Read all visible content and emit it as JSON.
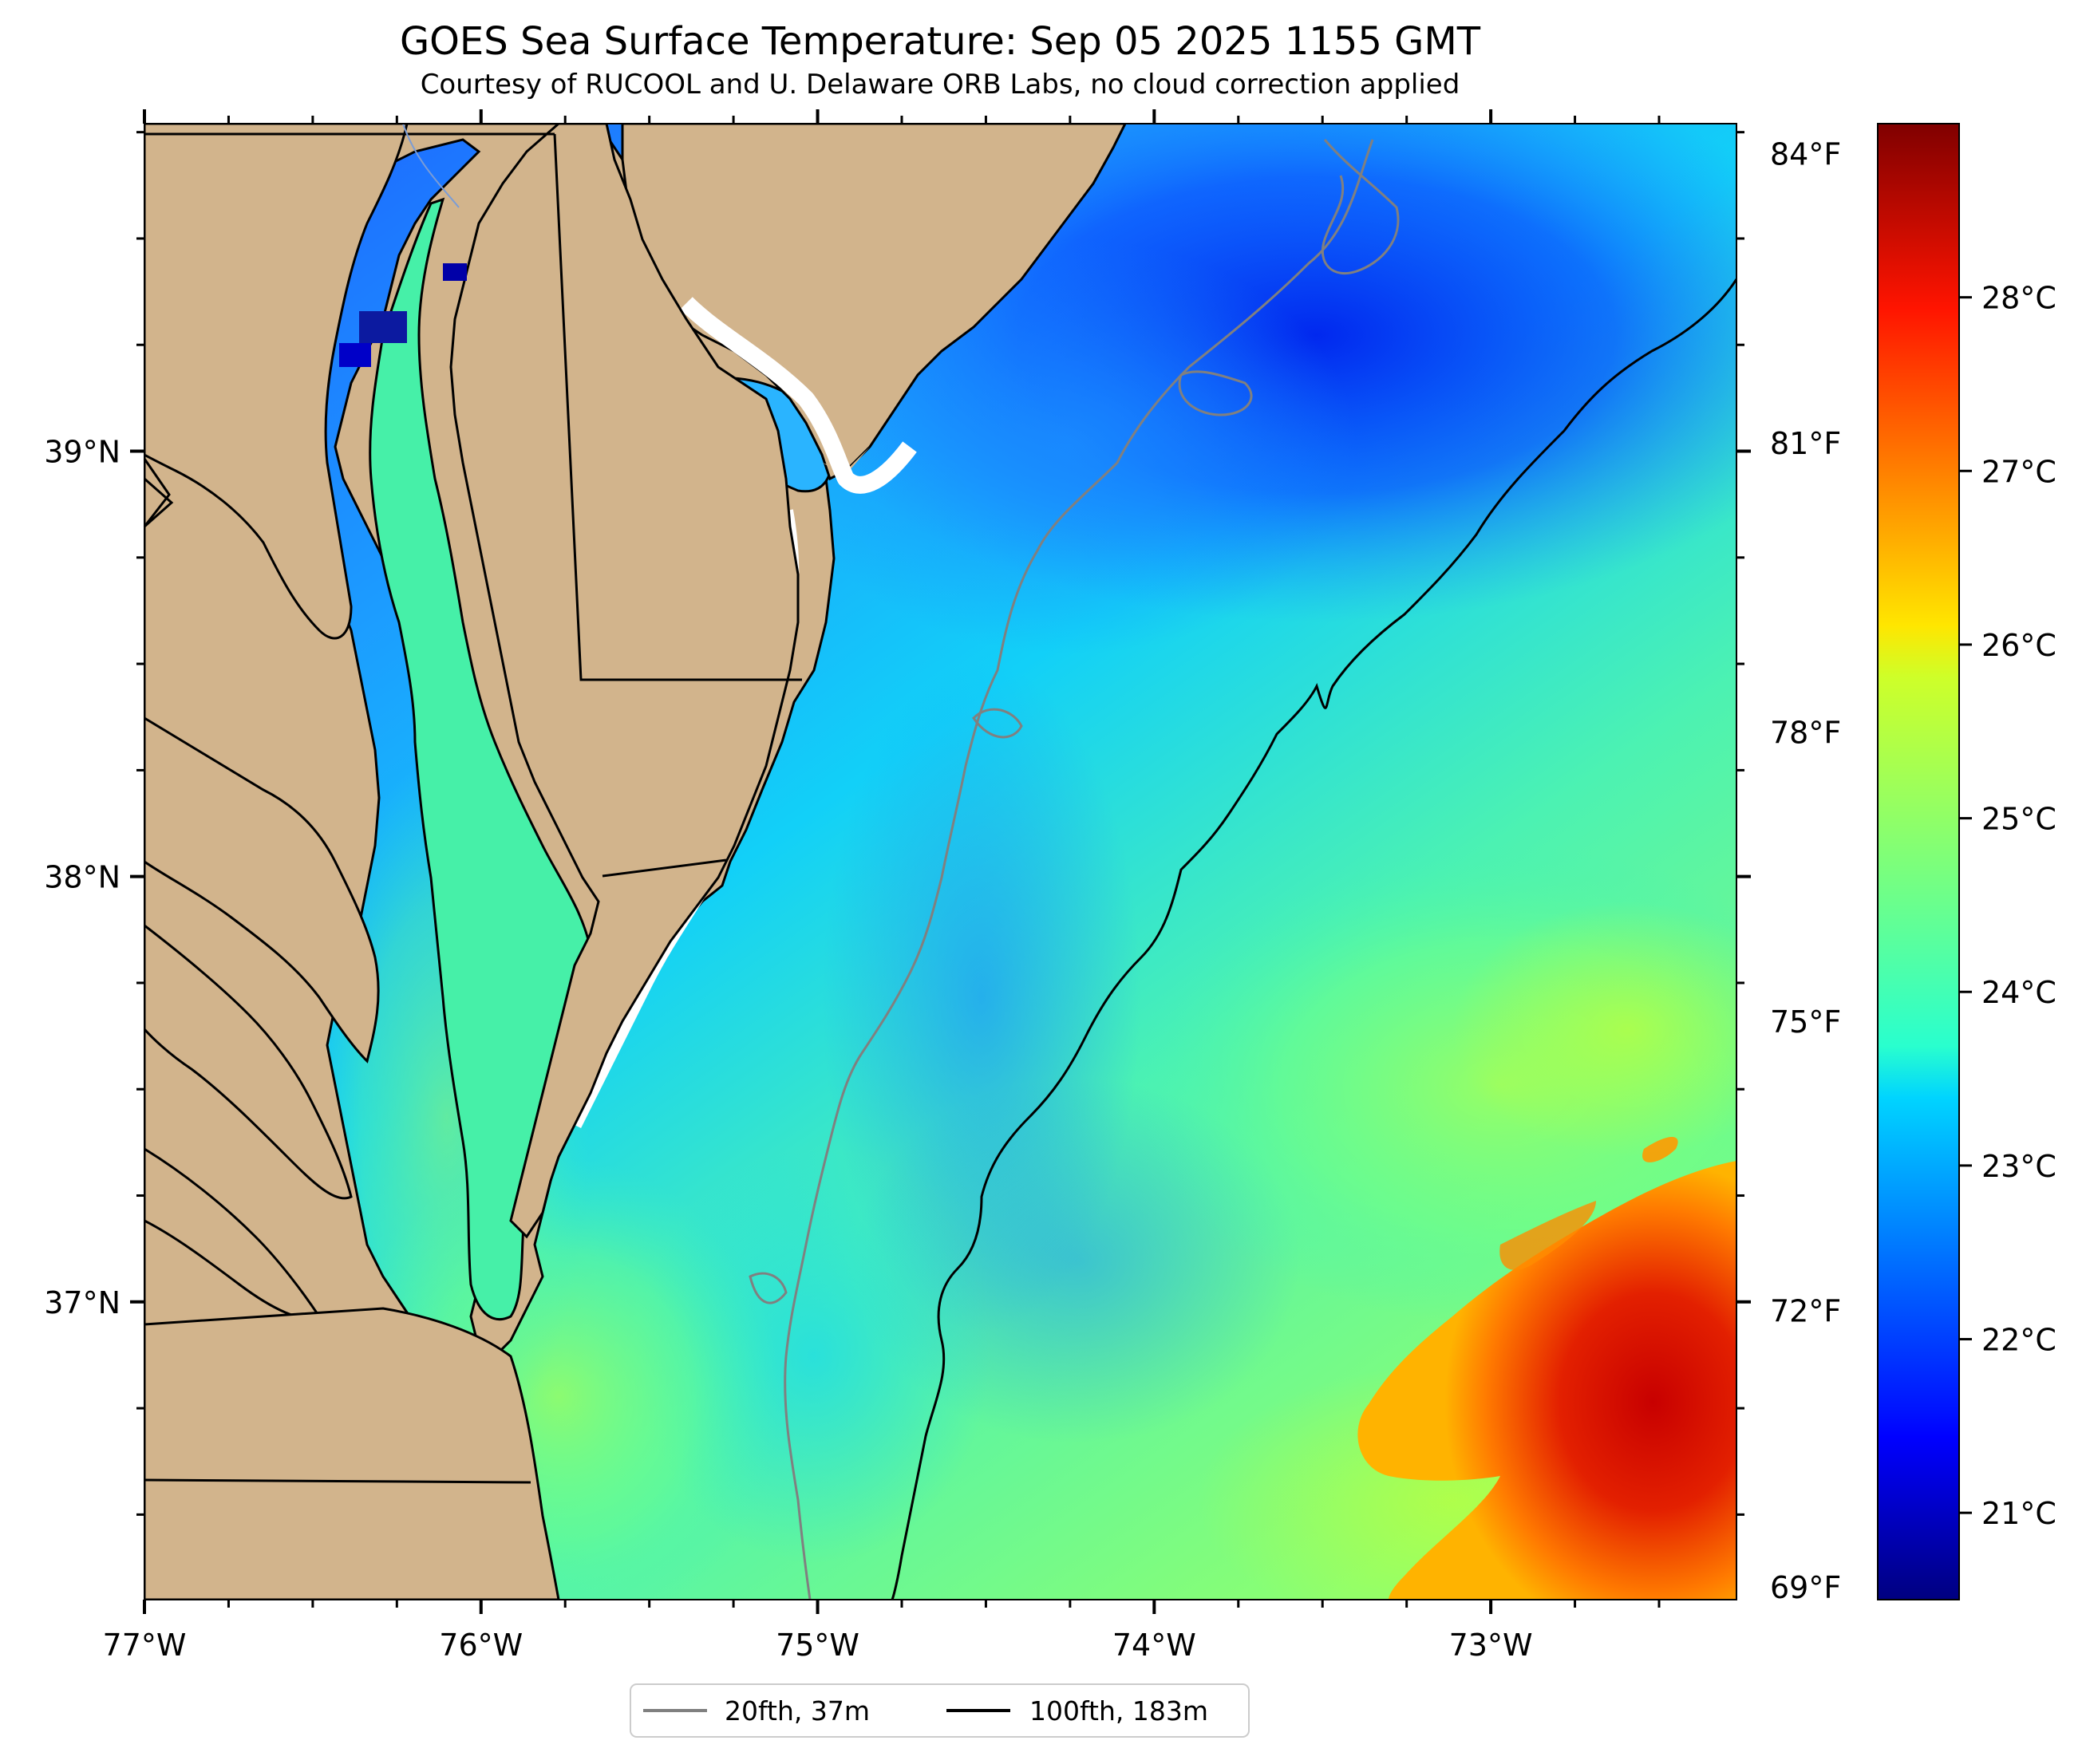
{
  "title": "GOES Sea Surface Temperature: Sep 05 2025 1155 GMT",
  "subtitle": "Courtesy of RUCOOL and U. Delaware ORB Labs, no cloud correction applied",
  "map": {
    "lon_range": [
      -77.0,
      -72.27
    ],
    "lat_range": [
      36.3,
      39.77
    ],
    "land_color": "#D2B48C",
    "lon_ticks": [
      {
        "value": -77,
        "label": "77°W"
      },
      {
        "value": -76,
        "label": "76°W"
      },
      {
        "value": -75,
        "label": "75°W"
      },
      {
        "value": -74,
        "label": "74°W"
      },
      {
        "value": -73,
        "label": "73°W"
      }
    ],
    "lat_ticks": [
      {
        "value": 39,
        "label": "39°N"
      },
      {
        "value": 38,
        "label": "38°N"
      },
      {
        "value": 37,
        "label": "37°N"
      }
    ],
    "right_axis_ticks": [
      {
        "value": 39.7,
        "label": "84°F"
      },
      {
        "value": 39.02,
        "label": "81°F"
      },
      {
        "value": 38.34,
        "label": "78°F"
      },
      {
        "value": 37.66,
        "label": "75°F"
      },
      {
        "value": 36.98,
        "label": "72°F"
      },
      {
        "value": 36.33,
        "label": "69°F"
      }
    ],
    "legend": {
      "placement": "bottom-center",
      "entries": [
        {
          "label": "20fth, 37m",
          "color": "#808080"
        },
        {
          "label": "100fth, 183m",
          "color": "#000000"
        }
      ]
    }
  },
  "colorbar": {
    "colormap": "jet",
    "range_c": [
      20.5,
      29.0
    ],
    "ticks": [
      {
        "value": 28,
        "label": "28°C"
      },
      {
        "value": 27,
        "label": "27°C"
      },
      {
        "value": 26,
        "label": "26°C"
      },
      {
        "value": 25,
        "label": "25°C"
      },
      {
        "value": 24,
        "label": "24°C"
      },
      {
        "value": 23,
        "label": "23°C"
      },
      {
        "value": 22,
        "label": "22°C"
      },
      {
        "value": 21,
        "label": "21°C"
      }
    ]
  }
}
